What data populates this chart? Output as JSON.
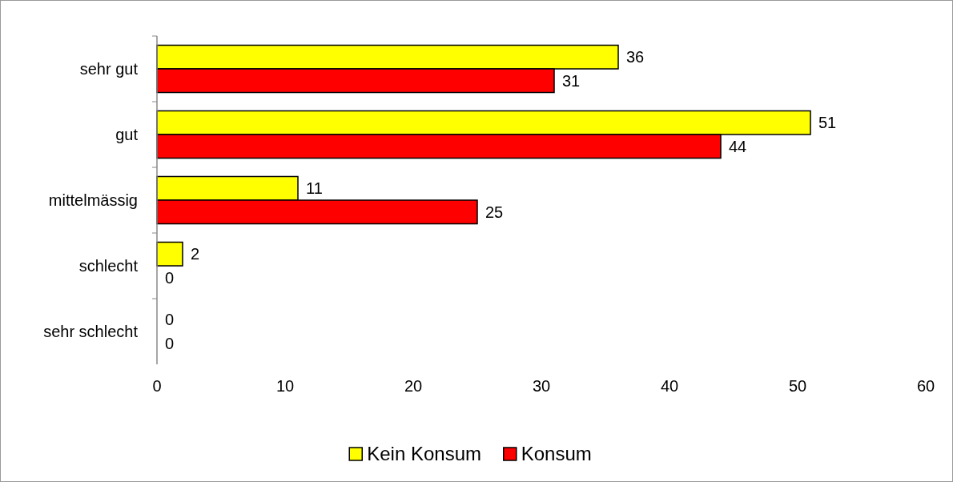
{
  "chart_data": {
    "type": "bar",
    "orientation": "horizontal",
    "categories": [
      "sehr gut",
      "gut",
      "mittelmässig",
      "schlecht",
      "sehr schlecht"
    ],
    "series": [
      {
        "name": "Kein Konsum",
        "color": "#ffff00",
        "values": [
          36,
          51,
          11,
          2,
          0
        ]
      },
      {
        "name": "Konsum",
        "color": "#ff0000",
        "values": [
          31,
          44,
          25,
          0,
          0
        ]
      }
    ],
    "xlim": [
      0,
      60
    ],
    "xticks": [
      0,
      10,
      20,
      30,
      40,
      50,
      60
    ],
    "data_labels": true,
    "legend": "bottom",
    "grid": false
  }
}
